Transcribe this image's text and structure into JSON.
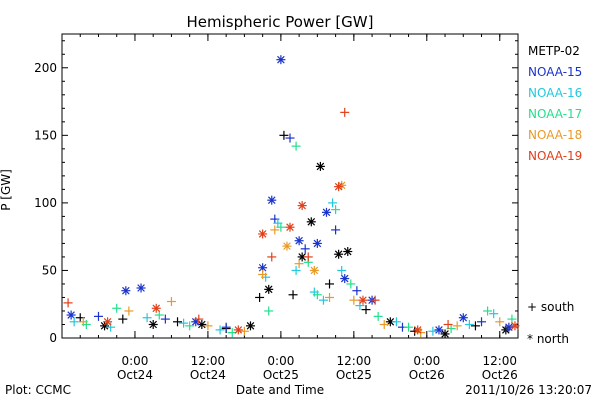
{
  "chart_data": {
    "type": "scatter",
    "title": "Hemispheric Power [GW]",
    "ylabel": "P [GW]",
    "xlabel": "Date and Time",
    "footer_left": "Plot: CCMC",
    "footer_right": "2011/10/26 13:20:07",
    "xlim": [
      "2011-10-23T12:00",
      "2011-10-26T15:00"
    ],
    "ylim": [
      0,
      225
    ],
    "yticks": [
      0,
      50,
      100,
      150,
      200
    ],
    "xticks_major": [
      {
        "x": "2011-10-24T00:00",
        "time": "0:00",
        "date": "Oct24"
      },
      {
        "x": "2011-10-24T12:00",
        "time": "12:00",
        "date": "Oct24"
      },
      {
        "x": "2011-10-25T00:00",
        "time": "0:00",
        "date": "Oct25"
      },
      {
        "x": "2011-10-25T12:00",
        "time": "12:00",
        "date": "Oct25"
      },
      {
        "x": "2011-10-26T00:00",
        "time": "0:00",
        "date": "Oct26"
      },
      {
        "x": "2011-10-26T12:00",
        "time": "12:00",
        "date": "Oct26"
      }
    ],
    "grid": false,
    "legend_position": "right",
    "legend": [
      {
        "name": "METP-02",
        "color": "#000000"
      },
      {
        "name": "NOAA-15",
        "color": "#1a33cc"
      },
      {
        "name": "NOAA-16",
        "color": "#22c8e0"
      },
      {
        "name": "NOAA-17",
        "color": "#22e08c"
      },
      {
        "name": "NOAA-18",
        "color": "#e89a28"
      },
      {
        "name": "NOAA-19",
        "color": "#e0401a"
      }
    ],
    "marker_legend": [
      {
        "symbol": "+",
        "label": "south"
      },
      {
        "symbol": "*",
        "label": "north"
      }
    ],
    "series": [
      {
        "name": "METP-02",
        "color": "#000000",
        "points": [
          [
            "2011-10-23T15:00",
            15,
            "+"
          ],
          [
            "2011-10-23T19:00",
            9,
            "*"
          ],
          [
            "2011-10-23T22:00",
            14,
            "+"
          ],
          [
            "2011-10-24T03:00",
            10,
            "*"
          ],
          [
            "2011-10-24T07:00",
            12,
            "+"
          ],
          [
            "2011-10-24T11:00",
            10,
            "*"
          ],
          [
            "2011-10-24T15:00",
            7,
            "+"
          ],
          [
            "2011-10-24T19:00",
            9,
            "*"
          ],
          [
            "2011-10-24T20:30",
            30,
            "+"
          ],
          [
            "2011-10-24T22:00",
            36,
            "*"
          ],
          [
            "2011-10-25T00:30",
            150,
            "+"
          ],
          [
            "2011-10-25T02:00",
            32,
            "+"
          ],
          [
            "2011-10-25T03:30",
            60,
            "*"
          ],
          [
            "2011-10-25T05:00",
            86,
            "*"
          ],
          [
            "2011-10-25T06:30",
            127,
            "*"
          ],
          [
            "2011-10-25T08:00",
            40,
            "+"
          ],
          [
            "2011-10-25T09:30",
            62,
            "*"
          ],
          [
            "2011-10-25T11:00",
            64,
            "*"
          ],
          [
            "2011-10-25T14:00",
            21,
            "+"
          ],
          [
            "2011-10-25T18:00",
            12,
            "*"
          ],
          [
            "2011-10-25T22:00",
            5,
            "+"
          ],
          [
            "2011-10-26T03:00",
            3,
            "*"
          ],
          [
            "2011-10-26T08:00",
            9,
            "+"
          ],
          [
            "2011-10-26T13:00",
            6,
            "*"
          ]
        ]
      },
      {
        "name": "NOAA-15",
        "color": "#1a33cc",
        "points": [
          [
            "2011-10-23T13:30",
            17,
            "*"
          ],
          [
            "2011-10-23T18:00",
            16,
            "+"
          ],
          [
            "2011-10-23T22:30",
            35,
            "*"
          ],
          [
            "2011-10-24T01:00",
            37,
            "*"
          ],
          [
            "2011-10-24T05:00",
            14,
            "+"
          ],
          [
            "2011-10-24T10:00",
            12,
            "*"
          ],
          [
            "2011-10-24T15:00",
            8,
            "+"
          ],
          [
            "2011-10-24T21:00",
            52,
            "*"
          ],
          [
            "2011-10-24T22:30",
            102,
            "*"
          ],
          [
            "2011-10-24T23:00",
            88,
            "+"
          ],
          [
            "2011-10-25T00:00",
            206,
            "*"
          ],
          [
            "2011-10-25T01:30",
            148,
            "+"
          ],
          [
            "2011-10-25T03:00",
            72,
            "*"
          ],
          [
            "2011-10-25T04:00",
            66,
            "+"
          ],
          [
            "2011-10-25T06:00",
            70,
            "*"
          ],
          [
            "2011-10-25T07:30",
            93,
            "*"
          ],
          [
            "2011-10-25T09:00",
            80,
            "+"
          ],
          [
            "2011-10-25T10:30",
            44,
            "*"
          ],
          [
            "2011-10-25T12:30",
            35,
            "+"
          ],
          [
            "2011-10-25T15:00",
            28,
            "*"
          ],
          [
            "2011-10-25T20:00",
            8,
            "+"
          ],
          [
            "2011-10-26T02:00",
            6,
            "*"
          ],
          [
            "2011-10-26T06:00",
            15,
            "*"
          ],
          [
            "2011-10-26T09:00",
            12,
            "+"
          ],
          [
            "2011-10-26T13:30",
            8,
            "*"
          ]
        ]
      },
      {
        "name": "NOAA-16",
        "color": "#22c8e0",
        "points": [
          [
            "2011-10-23T14:00",
            12,
            "+"
          ],
          [
            "2011-10-23T20:00",
            8,
            "+"
          ],
          [
            "2011-10-24T02:00",
            15,
            "+"
          ],
          [
            "2011-10-24T08:00",
            11,
            "+"
          ],
          [
            "2011-10-24T14:00",
            6,
            "+"
          ],
          [
            "2011-10-24T21:30",
            45,
            "+"
          ],
          [
            "2011-10-24T23:30",
            85,
            "+"
          ],
          [
            "2011-10-25T02:30",
            50,
            "+"
          ],
          [
            "2011-10-25T05:30",
            34,
            "+"
          ],
          [
            "2011-10-25T07:00",
            28,
            "+"
          ],
          [
            "2011-10-25T08:30",
            100,
            "+"
          ],
          [
            "2011-10-25T10:00",
            50,
            "+"
          ],
          [
            "2011-10-25T13:00",
            24,
            "+"
          ],
          [
            "2011-10-25T19:00",
            12,
            "+"
          ],
          [
            "2011-10-26T01:00",
            5,
            "+"
          ],
          [
            "2011-10-26T07:00",
            10,
            "+"
          ],
          [
            "2011-10-26T11:00",
            18,
            "+"
          ]
        ]
      },
      {
        "name": "NOAA-17",
        "color": "#22e08c",
        "points": [
          [
            "2011-10-23T16:00",
            10,
            "+"
          ],
          [
            "2011-10-23T21:00",
            22,
            "+"
          ],
          [
            "2011-10-24T04:00",
            17,
            "+"
          ],
          [
            "2011-10-24T09:00",
            9,
            "+"
          ],
          [
            "2011-10-24T16:00",
            4,
            "+"
          ],
          [
            "2011-10-24T22:00",
            20,
            "+"
          ],
          [
            "2011-10-25T00:00",
            82,
            "+"
          ],
          [
            "2011-10-25T02:30",
            142,
            "+"
          ],
          [
            "2011-10-25T04:30",
            56,
            "+"
          ],
          [
            "2011-10-25T06:00",
            32,
            "+"
          ],
          [
            "2011-10-25T09:00",
            95,
            "+"
          ],
          [
            "2011-10-25T11:30",
            40,
            "+"
          ],
          [
            "2011-10-25T16:00",
            16,
            "+"
          ],
          [
            "2011-10-25T21:00",
            8,
            "+"
          ],
          [
            "2011-10-26T04:00",
            7,
            "+"
          ],
          [
            "2011-10-26T10:00",
            20,
            "+"
          ],
          [
            "2011-10-26T14:00",
            14,
            "+"
          ]
        ]
      },
      {
        "name": "NOAA-18",
        "color": "#e89a28",
        "points": [
          [
            "2011-10-23T15:30",
            12,
            "+"
          ],
          [
            "2011-10-23T23:00",
            20,
            "+"
          ],
          [
            "2011-10-24T06:00",
            27,
            "+"
          ],
          [
            "2011-10-24T12:00",
            9,
            "+"
          ],
          [
            "2011-10-24T18:00",
            5,
            "+"
          ],
          [
            "2011-10-24T21:00",
            47,
            "+"
          ],
          [
            "2011-10-24T23:00",
            80,
            "+"
          ],
          [
            "2011-10-25T01:00",
            68,
            "*"
          ],
          [
            "2011-10-25T03:00",
            55,
            "+"
          ],
          [
            "2011-10-25T05:30",
            50,
            "*"
          ],
          [
            "2011-10-25T10:00",
            113,
            "*"
          ],
          [
            "2011-10-25T08:00",
            30,
            "+"
          ],
          [
            "2011-10-25T12:00",
            28,
            "+"
          ],
          [
            "2011-10-25T17:00",
            10,
            "+"
          ],
          [
            "2011-10-25T23:00",
            4,
            "+"
          ],
          [
            "2011-10-26T05:00",
            9,
            "+"
          ],
          [
            "2011-10-26T12:00",
            12,
            "+"
          ]
        ]
      },
      {
        "name": "NOAA-19",
        "color": "#e0401a",
        "points": [
          [
            "2011-10-23T13:00",
            26,
            "+"
          ],
          [
            "2011-10-23T19:30",
            12,
            "*"
          ],
          [
            "2011-10-24T03:30",
            22,
            "*"
          ],
          [
            "2011-10-24T10:30",
            14,
            "+"
          ],
          [
            "2011-10-24T17:00",
            6,
            "*"
          ],
          [
            "2011-10-24T21:00",
            77,
            "*"
          ],
          [
            "2011-10-24T22:30",
            60,
            "+"
          ],
          [
            "2011-10-25T01:30",
            82,
            "*"
          ],
          [
            "2011-10-25T03:30",
            98,
            "*"
          ],
          [
            "2011-10-25T04:30",
            60,
            "+"
          ],
          [
            "2011-10-25T09:30",
            112,
            "*"
          ],
          [
            "2011-10-25T10:30",
            167,
            "+"
          ],
          [
            "2011-10-25T13:30",
            28,
            "*"
          ],
          [
            "2011-10-25T15:30",
            28,
            "+"
          ],
          [
            "2011-10-25T22:30",
            6,
            "*"
          ],
          [
            "2011-10-26T03:30",
            10,
            "+"
          ],
          [
            "2011-10-26T14:30",
            9,
            "*"
          ]
        ]
      }
    ]
  }
}
